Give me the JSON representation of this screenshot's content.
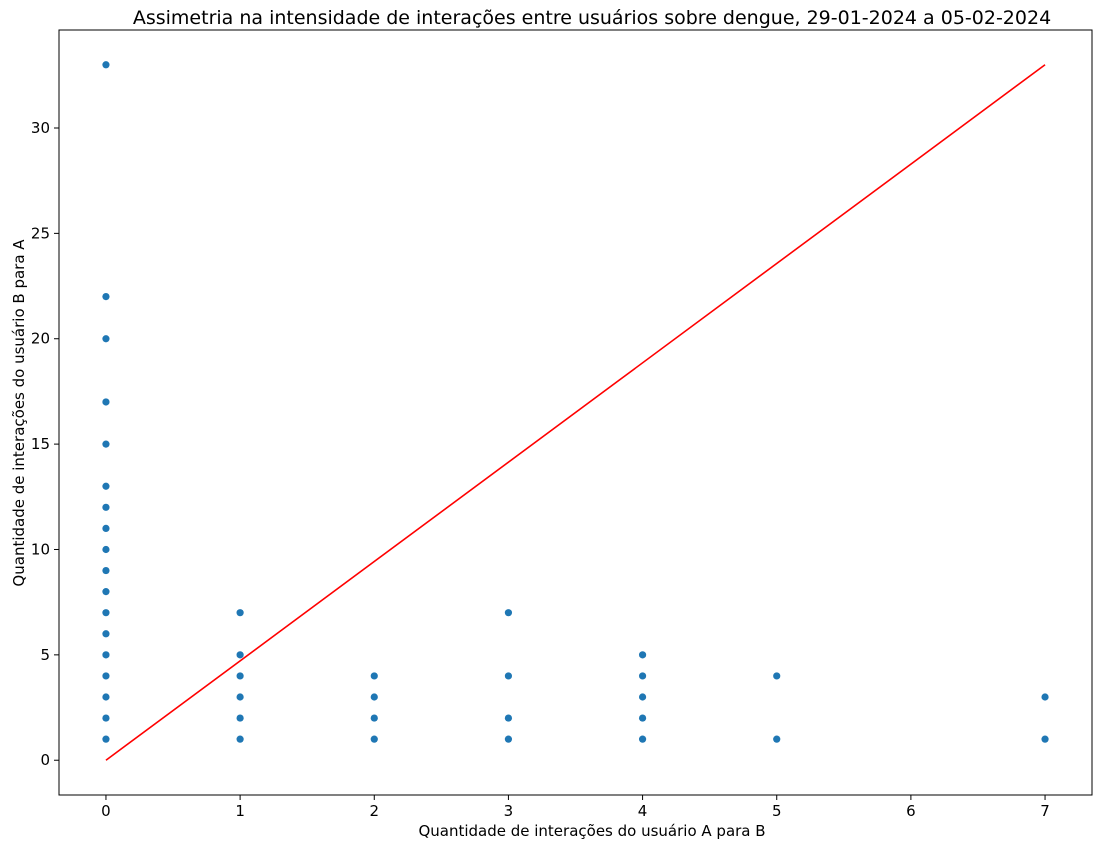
{
  "chart_data": {
    "type": "scatter",
    "title": "Assimetria na intensidade de interações entre usuários sobre dengue, 29-01-2024 a 05-02-2024",
    "xlabel": "Quantidade de interações do usuário A para B",
    "ylabel": "Quantidade de interações do usuário B para A",
    "xlim": [
      -0.35,
      7.35
    ],
    "ylim": [
      -1.65,
      34.65
    ],
    "x_ticks": [
      0,
      1,
      2,
      3,
      4,
      5,
      6,
      7
    ],
    "y_ticks": [
      0,
      5,
      10,
      15,
      20,
      25,
      30
    ],
    "grid": false,
    "marker_color": "#1f77b4",
    "line_color": "#ff0000",
    "points": [
      {
        "x": 0,
        "y": 1
      },
      {
        "x": 0,
        "y": 2
      },
      {
        "x": 0,
        "y": 3
      },
      {
        "x": 0,
        "y": 4
      },
      {
        "x": 0,
        "y": 5
      },
      {
        "x": 0,
        "y": 6
      },
      {
        "x": 0,
        "y": 7
      },
      {
        "x": 0,
        "y": 8
      },
      {
        "x": 0,
        "y": 9
      },
      {
        "x": 0,
        "y": 10
      },
      {
        "x": 0,
        "y": 11
      },
      {
        "x": 0,
        "y": 12
      },
      {
        "x": 0,
        "y": 13
      },
      {
        "x": 0,
        "y": 15
      },
      {
        "x": 0,
        "y": 17
      },
      {
        "x": 0,
        "y": 20
      },
      {
        "x": 0,
        "y": 22
      },
      {
        "x": 0,
        "y": 33
      },
      {
        "x": 1,
        "y": 1
      },
      {
        "x": 1,
        "y": 2
      },
      {
        "x": 1,
        "y": 3
      },
      {
        "x": 1,
        "y": 4
      },
      {
        "x": 1,
        "y": 5
      },
      {
        "x": 1,
        "y": 7
      },
      {
        "x": 2,
        "y": 1
      },
      {
        "x": 2,
        "y": 2
      },
      {
        "x": 2,
        "y": 3
      },
      {
        "x": 2,
        "y": 4
      },
      {
        "x": 3,
        "y": 1
      },
      {
        "x": 3,
        "y": 2
      },
      {
        "x": 3,
        "y": 4
      },
      {
        "x": 3,
        "y": 7
      },
      {
        "x": 4,
        "y": 1
      },
      {
        "x": 4,
        "y": 2
      },
      {
        "x": 4,
        "y": 3
      },
      {
        "x": 4,
        "y": 4
      },
      {
        "x": 4,
        "y": 5
      },
      {
        "x": 5,
        "y": 1
      },
      {
        "x": 5,
        "y": 4
      },
      {
        "x": 7,
        "y": 1
      },
      {
        "x": 7,
        "y": 3
      }
    ],
    "reference_line": {
      "x": [
        0,
        7
      ],
      "y": [
        0,
        33
      ]
    }
  }
}
